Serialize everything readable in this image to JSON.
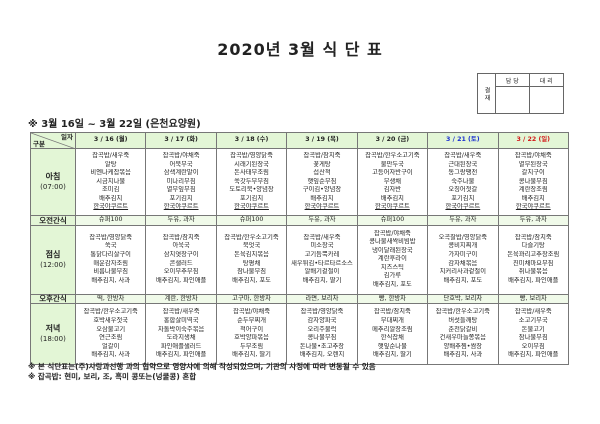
{
  "title": "2020년 3월 식 단 표",
  "approval": {
    "label": "결 재",
    "col1": "담 당",
    "col2": "대 리"
  },
  "subtitle": "※ 3월 16일 ~ 3월 22일 (은천요양원)",
  "corner": {
    "top": "일자",
    "bottom": "구분"
  },
  "days": [
    {
      "label": "3 / 16 (월)",
      "type": "weekday"
    },
    {
      "label": "3 / 17 (화)",
      "type": "weekday"
    },
    {
      "label": "3 / 18 (수)",
      "type": "weekday"
    },
    {
      "label": "3 / 19 (목)",
      "type": "weekday"
    },
    {
      "label": "3 / 20 (금)",
      "type": "weekday"
    },
    {
      "label": "3 / 21 (토)",
      "type": "sat"
    },
    {
      "label": "3 / 22 (일)",
      "type": "sun"
    }
  ],
  "day_colors": {
    "sat": "#1a2fd0",
    "sun": "#d21818",
    "header_bg": "#e3f6d6"
  },
  "rows": [
    {
      "label": "아침",
      "time": "(07:00)",
      "kind": "meal",
      "cells": [
        [
          "잡곡밥/새우죽",
          "알탕",
          "비엔나케찹볶음",
          "시금치나물",
          "조미김",
          "배추김치",
          "한국야쿠르트"
        ],
        [
          "잡곡밥/야채죽",
          "어묵무국",
          "삼색계란말이",
          "미나리무침",
          "열무잎무침",
          "포기김치",
          "한국야쿠르트"
        ],
        [
          "잡곡밥/영양닭죽",
          "시래기된장국",
          "돈사태무조림",
          "쑥갓두부무침",
          "도토리묵•양념장",
          "포기김치",
          "한국야쿠르트"
        ],
        [
          "잡곡밥/참치죽",
          "꽃게탕",
          "섭산적",
          "햇잎순무침",
          "구이김•양념장",
          "배추김치",
          "한국야쿠르트"
        ],
        [
          "잡곡밥/한우소고기죽",
          "물만두국",
          "고등어자반구이",
          "무생채",
          "김자반",
          "배추김치",
          "한국야쿠르트"
        ],
        [
          "잡곡밥/새우죽",
          "근대된장국",
          "동그랑땡전",
          "숙주나물",
          "오징어젓갈",
          "포기김치",
          "한국야쿠르트"
        ],
        [
          "잡곡밥/야채죽",
          "열무된장국",
          "갈치구이",
          "콩나물무침",
          "계란장조림",
          "배추김치",
          "한국야쿠르트"
        ]
      ]
    },
    {
      "label": "오전간식",
      "kind": "snack",
      "cells": [
        "슈퍼100",
        "두유, 과자",
        "슈퍼100",
        "두유, 과자",
        "슈퍼100",
        "두유, 과자",
        "두유, 과자"
      ]
    },
    {
      "label": "점심",
      "time": "(12:00)",
      "kind": "meal",
      "cells": [
        [
          "잡곡밥/영양닭죽",
          "쑥국",
          "통닭다리살구이",
          "매운감자조림",
          "비름나물무침",
          "배추김치, 사과"
        ],
        [
          "잡곡밥/참치죽",
          "아욱국",
          "삼치엿장구이",
          "콘샐러드",
          "오이부추무침",
          "배추김치, 파인애플"
        ],
        [
          "잡곡밥/한우소고기죽",
          "북엇국",
          "돈육김치볶음",
          "탕평채",
          "참나물무침",
          "배추김치, 포도"
        ],
        [
          "잡곡밥/새우죽",
          "미소장국",
          "고기듬뿍카레",
          "새우튀김•타르타르소스",
          "알배기겉절이",
          "배추김치, 딸기"
        ],
        [
          "잡곡밥/야채죽",
          "콩나물새싹비빔밥",
          "냉이달래된장국",
          "계란후라이",
          "치즈스틱",
          "김가루",
          "배추김치, 포도"
        ],
        [
          "오곡찰밥/영양닭죽",
          "콩비지찌개",
          "가자미구이",
          "감자채볶음",
          "치커리사과겉절이",
          "배추김치, 포도"
        ],
        [
          "잡곡밥/참치죽",
          "다슬기탕",
          "돈육꽈리고추장조림",
          "진미채마요무침",
          "취나물볶음",
          "배추김치, 파인애플"
        ]
      ]
    },
    {
      "label": "오후간식",
      "kind": "snack",
      "cells": [
        "떡, 한방차",
        "계란, 한방차",
        "고구마, 한방차",
        "라면, 보리차",
        "빵, 한방차",
        "단호박, 보리차",
        "빵, 보리차"
      ]
    },
    {
      "label": "저녁",
      "time": "(18:00)",
      "kind": "meal",
      "cells": [
        [
          "잡곡밥/한우소고기죽",
          "호박새우젓국",
          "오삼불고기",
          "연근조림",
          "얼갈이",
          "배추김치, 사과"
        ],
        [
          "잡곡밥/새우죽",
          "홍합살미역국",
          "차돌박이숙주볶음",
          "도라지생채",
          "파인애플샐러드",
          "배추김치, 파인애플"
        ],
        [
          "잡곡밥/야채죽",
          "순두부찌개",
          "적어구이",
          "호박양파볶음",
          "두부조림",
          "배추김치, 딸기"
        ],
        [
          "잡곡밥/영양닭죽",
          "감자양파국",
          "오리주물럭",
          "콩나물무침",
          "돈나물•초고추장",
          "배추김치, 오렌지"
        ],
        [
          "잡곡밥/참치죽",
          "부대찌개",
          "메추리알장조림",
          "한식잡채",
          "햇잎순나물",
          "배추김치, 딸기"
        ],
        [
          "잡곡밥/한우소고기죽",
          "버섯들깨탕",
          "춘천닭갈비",
          "건새우마늘쫑볶음",
          "양배추찜•쌈장",
          "배추김치, 사과"
        ],
        [
          "잡곡밥/새우죽",
          "소고기무국",
          "돈불고기",
          "참나물무침",
          "오이무침",
          "배추김치, 파인애플"
        ]
      ]
    }
  ],
  "notes": [
    "※ 본 식단표는(주)사랑과선행 과의 협약으로 영양사에 의해 작성되었으며, 기관의 사정에 따라 변동될 수 있음",
    "※ 잡곡밥: 현미, 보리, 조, 흑미 콩또는(넝쿨콩) 혼합"
  ]
}
